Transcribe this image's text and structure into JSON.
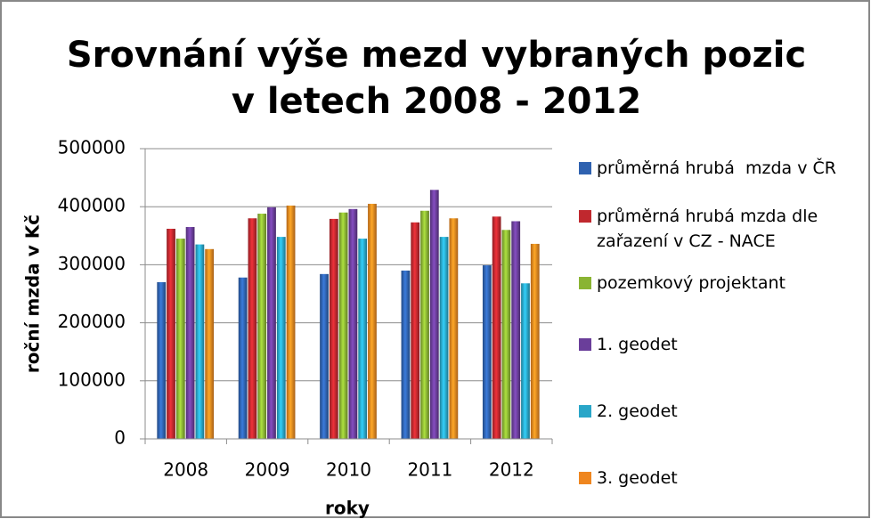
{
  "chart_data": {
    "type": "bar",
    "title": "Srovnání výše mezd vybraných pozic v letech 2008 - 2012",
    "x_label": "roky",
    "y_label": "roční mzda v Kč",
    "categories": [
      "2008",
      "2009",
      "2010",
      "2011",
      "2012"
    ],
    "series": [
      {
        "name": "průměrná hrubá  mzda v ČR",
        "color": "#2f62b0",
        "values": [
          270000,
          278000,
          284000,
          290000,
          299000
        ]
      },
      {
        "name": "průměrná hrubá mzda dle zařazení v CZ - NACE",
        "color": "#c0282e",
        "values": [
          362000,
          380000,
          379000,
          373000,
          383000
        ]
      },
      {
        "name": "pozemkový projektant",
        "color": "#8ab433",
        "values": [
          345000,
          388000,
          390000,
          393000,
          360000
        ]
      },
      {
        "name": "1. geodet",
        "color": "#6a3e9a",
        "values": [
          365000,
          399000,
          396000,
          429000,
          375000
        ]
      },
      {
        "name": "2. geodet",
        "color": "#29a6c8",
        "values": [
          335000,
          348000,
          345000,
          348000,
          268000
        ]
      },
      {
        "name": "3. geodet",
        "color": "#ef861f",
        "values": [
          327000,
          402000,
          405000,
          380000,
          336000
        ]
      }
    ],
    "ylim": [
      0,
      500000
    ],
    "yticks": [
      0,
      100000,
      200000,
      300000,
      400000,
      500000
    ],
    "grid": true,
    "legend": "right"
  }
}
